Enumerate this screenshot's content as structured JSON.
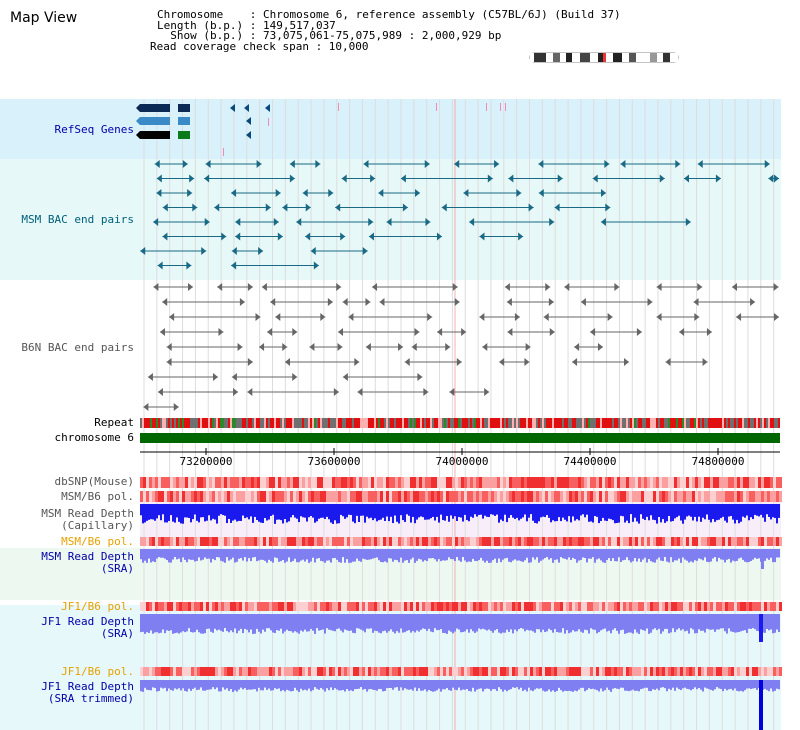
{
  "header": {
    "title": "Map View",
    "chromosome_label": "Chromosome    : Chromosome 6, reference assembly (C57BL/6J) (Build 37)",
    "length_label": "Length (b.p.) : 149,517,037",
    "show_label": "  Show (b.p.) : 73,075,061-75,075,989 : 2,000,929 bp",
    "coverage_label": "Read coverage check span : 10,000"
  },
  "tracks": {
    "refseq": "RefSeq Genes",
    "msm_bac": "MSM BAC end pairs",
    "b6n_bac": "B6N BAC end pairs",
    "repeat": "Repeat",
    "chromosome": "chromosome 6",
    "dbsnp": "dbSNP(Mouse)",
    "msm_b6_pol": "MSM/B6 pol.",
    "msm_read_depth_cap": "MSM Read Depth\n (Capillary)",
    "msm_b6_pol_2": "MSM/B6 pol.",
    "msm_read_depth_sra": "MSM Read Depth\n(SRA)",
    "jf1_b6_pol": "JF1/B6 pol.",
    "jf1_read_depth_sra": "JF1 Read Depth\n(SRA)",
    "jf1_b6_pol_2": "JF1/B6 pol.",
    "jf1_read_depth_trim": "JF1 Read Depth\n(SRA trimmed)"
  },
  "axis": {
    "ticks": [
      "73200000",
      "73600000",
      "74000000",
      "74400000",
      "74800000"
    ]
  },
  "colors": {
    "refseq_bg": "#d9f1fb",
    "msm_bg": "#e6f8f7",
    "read_bg_pink": "#f8eefa",
    "read_bg_green": "#edf9f0",
    "read_bg_cyan": "#e6f8fa",
    "chromosome": "#006600",
    "depth_dark": "#1a1aee",
    "depth_light": "#7f7ff2"
  }
}
